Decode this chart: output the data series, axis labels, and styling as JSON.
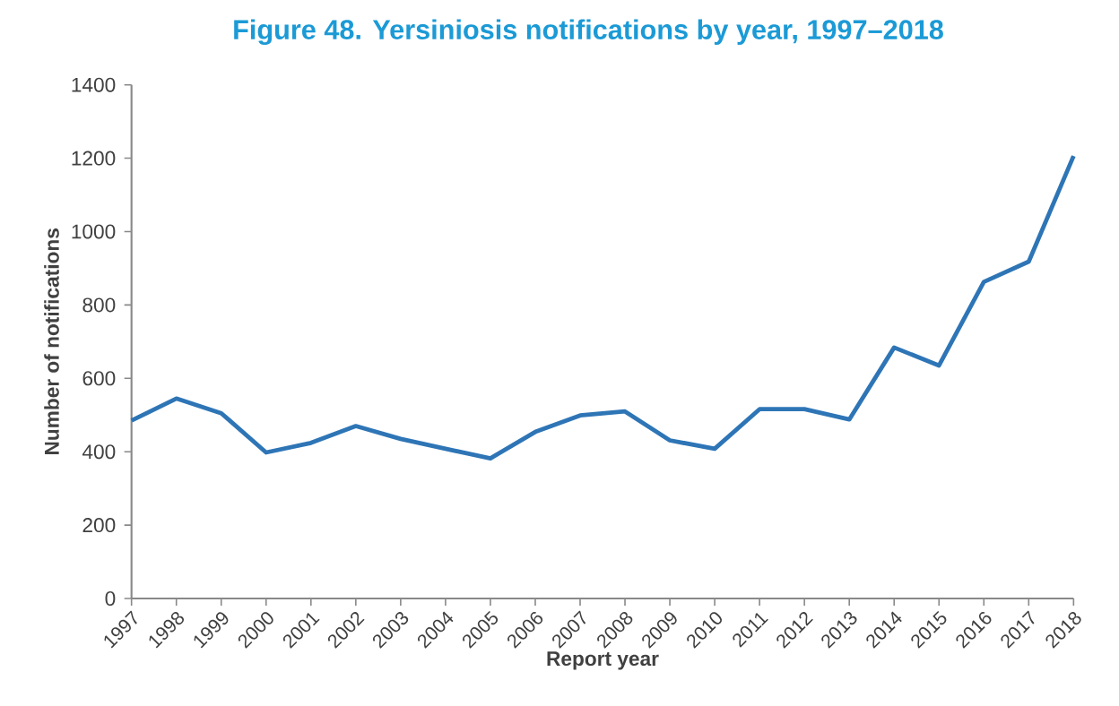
{
  "chart_data": {
    "type": "line",
    "title": "Figure 48. Yersiniosis notifications by year, 1997–2018",
    "xlabel": "Report year",
    "ylabel": "Number of notifications",
    "categories": [
      "1997",
      "1998",
      "1999",
      "2000",
      "2001",
      "2002",
      "2003",
      "2004",
      "2005",
      "2006",
      "2007",
      "2008",
      "2009",
      "2010",
      "2011",
      "2012",
      "2013",
      "2014",
      "2015",
      "2016",
      "2017",
      "2018"
    ],
    "series": [
      {
        "color": "#2e75b6",
        "values": [
          485,
          545,
          505,
          398,
          424,
          470,
          435,
          408,
          382,
          454,
          499,
          510,
          431,
          408,
          516,
          516,
          488,
          684,
          635,
          863,
          918,
          1206
        ]
      }
    ],
    "ylim": [
      0,
      1400
    ],
    "yticks": [
      0,
      200,
      400,
      600,
      800,
      1000,
      1200,
      1400
    ],
    "grid": false,
    "marker": "none",
    "line_style": "solid"
  }
}
